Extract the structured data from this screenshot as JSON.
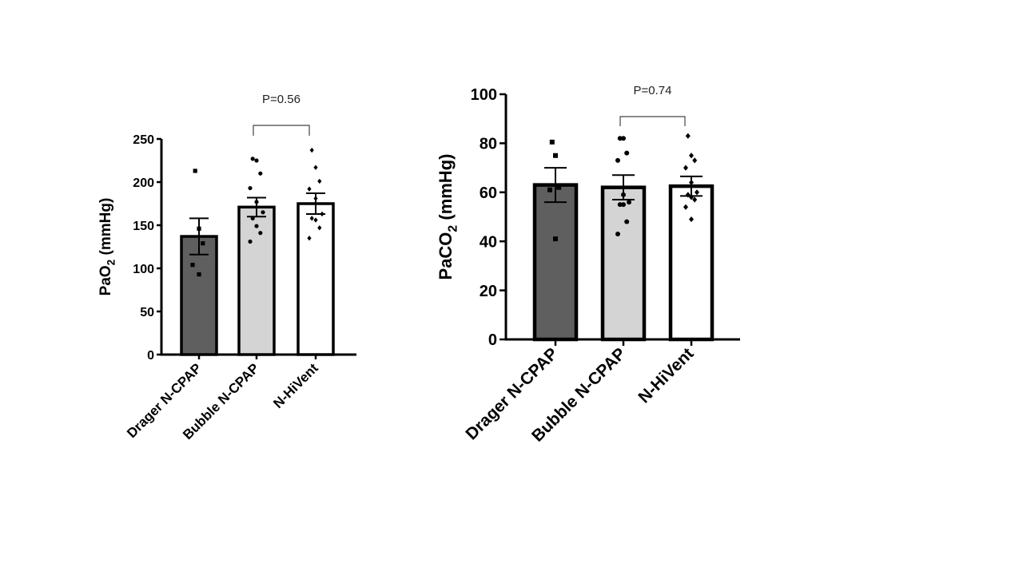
{
  "chart_data": [
    {
      "type": "bar",
      "categories": [
        "Drager N-CPAP",
        "Bubble N-CPAP",
        "N-HiVent"
      ],
      "values": [
        137,
        171,
        175
      ],
      "sem": [
        21,
        11,
        12
      ],
      "points": [
        [
          213,
          146,
          129,
          104,
          93
        ],
        [
          227,
          225,
          210,
          193,
          177,
          165,
          158,
          149,
          141,
          131
        ],
        [
          237,
          217,
          201,
          192,
          181,
          163,
          158,
          156,
          147,
          135
        ]
      ],
      "fill_colors": [
        "#5f5f5f",
        "#d4d4d4",
        "#ffffff"
      ],
      "ylabel_main": "PaO",
      "ylabel_sub": "2",
      "ylabel_unit": " (mmHg)",
      "ylim": [
        0,
        250
      ],
      "yticks": [
        "0",
        "50",
        "100",
        "150",
        "200",
        "250"
      ],
      "comparison": {
        "from": 1,
        "to": 2,
        "label": "P=0.56"
      },
      "grid": false
    },
    {
      "type": "bar",
      "categories": [
        "Drager N-CPAP",
        "Bubble N-CPAP",
        "N-HiVent"
      ],
      "values": [
        63,
        62,
        62.5
      ],
      "sem": [
        7,
        5,
        4
      ],
      "points": [
        [
          80.5,
          75,
          62,
          61,
          41
        ],
        [
          82,
          82,
          76,
          73,
          59,
          56,
          55,
          55,
          48,
          43
        ],
        [
          83,
          75,
          73,
          70,
          64,
          60,
          59,
          58,
          57,
          54,
          49
        ]
      ],
      "fill_colors": [
        "#5f5f5f",
        "#d4d4d4",
        "#ffffff"
      ],
      "ylabel_main": "PaCO",
      "ylabel_sub": "2",
      "ylabel_unit": " (mmHg)",
      "ylim": [
        0,
        100
      ],
      "yticks": [
        "0",
        "20",
        "40",
        "60",
        "80",
        "100"
      ],
      "comparison": {
        "from": 1,
        "to": 2,
        "label": "P=0.74"
      },
      "grid": false
    }
  ]
}
